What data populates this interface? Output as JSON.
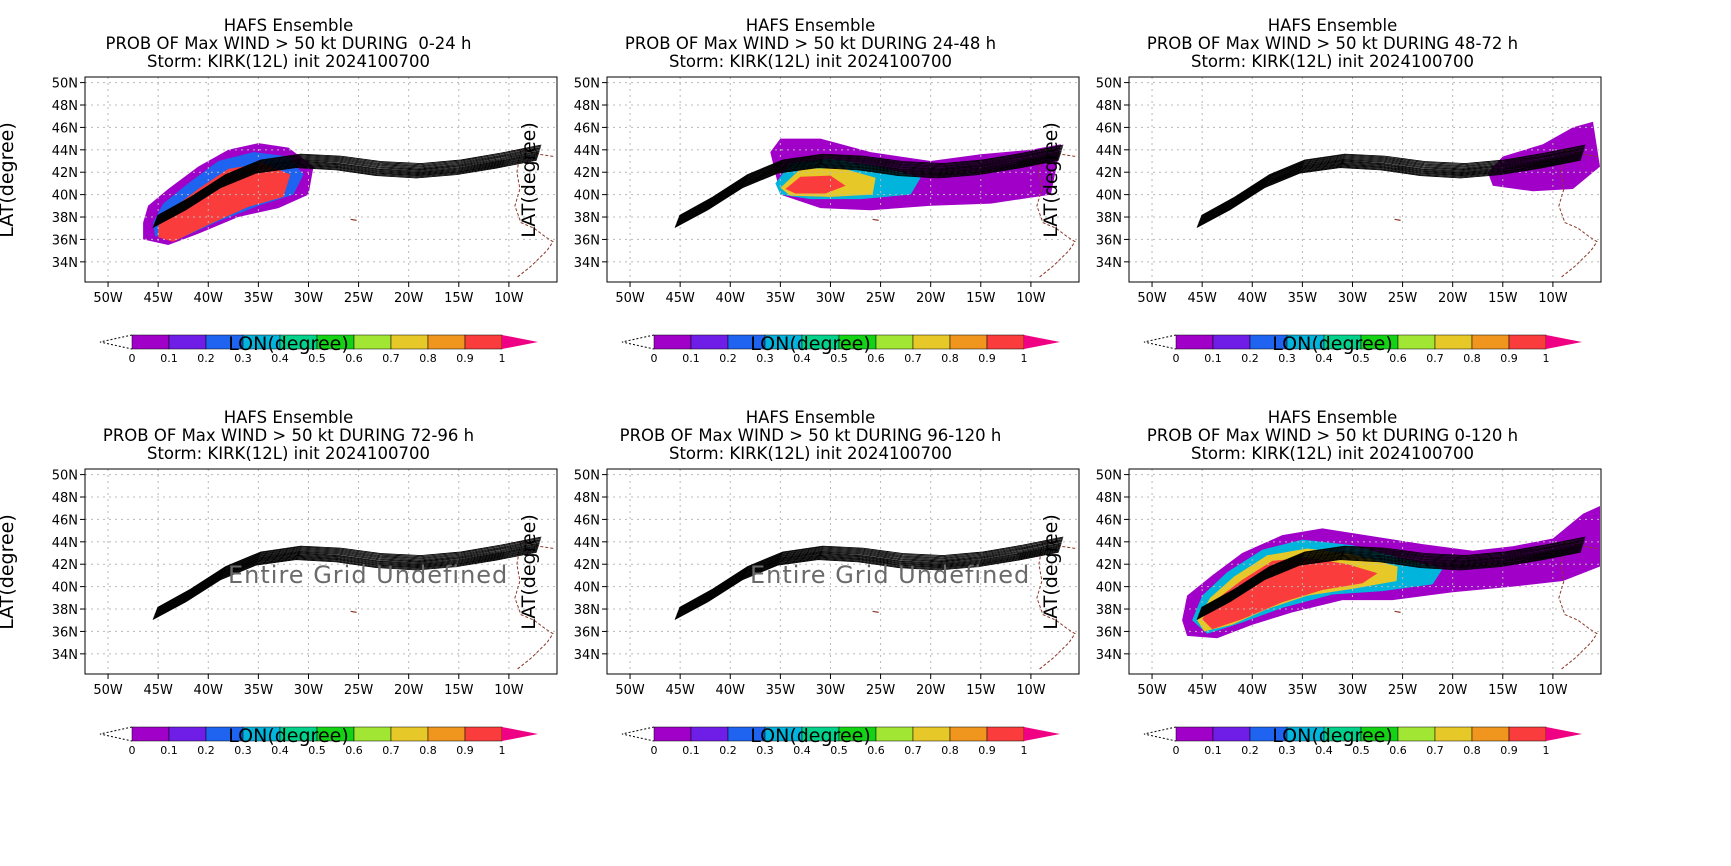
{
  "figure": {
    "common": {
      "title_line1": "HAFS Ensemble",
      "title_line3": "Storm: KIRK(12L) init 2024100700",
      "xlabel": "LON(degree)",
      "ylabel": "LAT(degree)",
      "lon_ticks": [
        "50W",
        "45W",
        "40W",
        "35W",
        "30W",
        "25W",
        "20W",
        "15W",
        "10W"
      ],
      "lat_ticks": [
        "50N",
        "48N",
        "46N",
        "44N",
        "42N",
        "40N",
        "38N",
        "36N",
        "34N"
      ],
      "colorbar_labels": [
        "0",
        "0.1",
        "0.2",
        "0.3",
        "0.4",
        "0.5",
        "0.6",
        "0.7",
        "0.8",
        "0.9",
        "1"
      ],
      "colorbar_colors": [
        "#a000c8",
        "#6e1ee6",
        "#1e64f0",
        "#00b4dc",
        "#00d28c",
        "#14d214",
        "#a0e632",
        "#e6c828",
        "#f0961e",
        "#fa3c3c",
        "#f00082"
      ]
    },
    "panels": [
      {
        "title_line2": "PROB OF Max WIND > 50 kt DURING  0-24 h",
        "prob_pattern": "0-24",
        "undefined_text": ""
      },
      {
        "title_line2": "PROB OF Max WIND > 50 kt DURING 24-48 h",
        "prob_pattern": "24-48",
        "undefined_text": ""
      },
      {
        "title_line2": "PROB OF Max WIND > 50 kt DURING 48-72 h",
        "prob_pattern": "48-72",
        "undefined_text": ""
      },
      {
        "title_line2": "PROB OF Max WIND > 50 kt DURING 72-96 h",
        "prob_pattern": "none",
        "undefined_text": "Entire Grid Undefined"
      },
      {
        "title_line2": "PROB OF Max WIND > 50 kt DURING 96-120 h",
        "prob_pattern": "none",
        "undefined_text": "Entire Grid Undefined"
      },
      {
        "title_line2": "PROB OF Max WIND > 50 kt DURING 0-120 h",
        "prob_pattern": "0-120",
        "undefined_text": ""
      }
    ]
  }
}
